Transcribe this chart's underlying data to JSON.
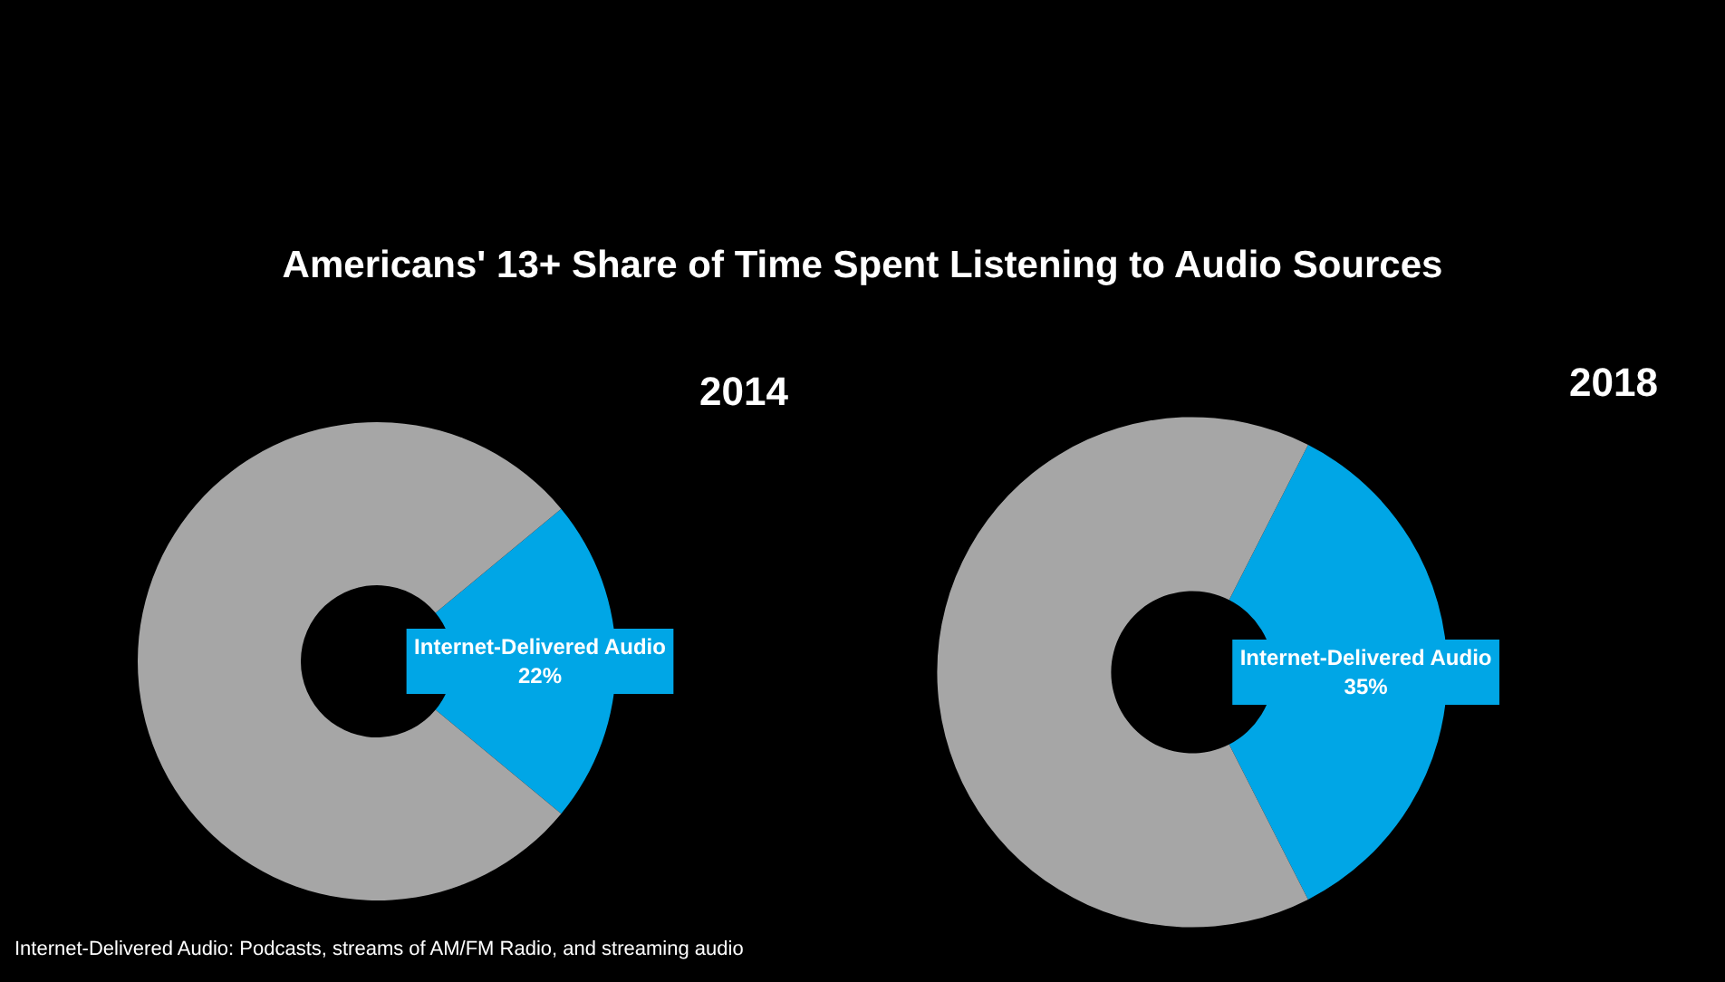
{
  "chart_data": [
    {
      "type": "donut",
      "title": "2014",
      "annotations": [
        "Americans' 13+ Share of Time Spent Listening to Audio Sources"
      ],
      "categories": [
        "Internet-Delivered Audio",
        null
      ],
      "values": [
        22,
        78
      ],
      "value_labels": [
        "22%",
        null
      ],
      "colors": [
        "#00a6e6",
        "#a6a6a6"
      ],
      "legend": false
    },
    {
      "type": "donut",
      "title": "2018",
      "annotations": [
        "Internet-Delivered Audio: Podcasts, streams of AM/FM Radio, and streaming audio"
      ],
      "categories": [
        "Internet-Delivered Audio",
        null
      ],
      "values": [
        35,
        65
      ],
      "value_labels": [
        "35%",
        null
      ],
      "colors": [
        "#00a6e6",
        "#a6a6a6"
      ],
      "legend": false
    }
  ]
}
